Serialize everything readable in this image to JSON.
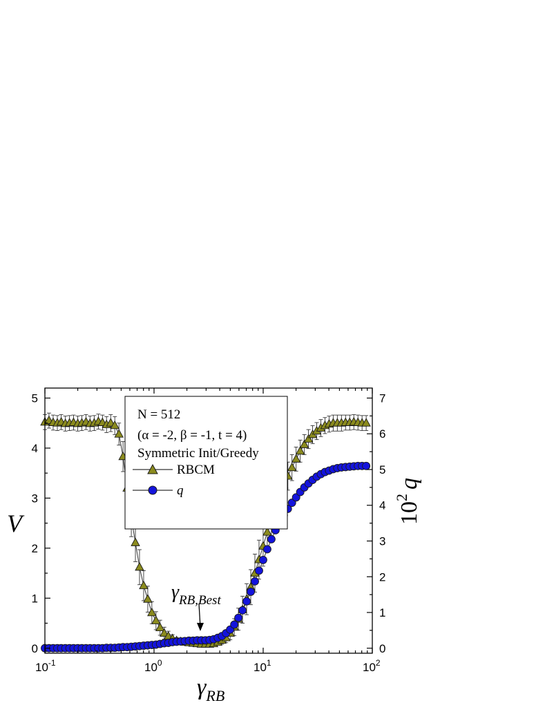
{
  "chart_data": {
    "type": "scatter",
    "xscale": "log",
    "xlim": [
      0.1,
      100
    ],
    "x_ticks": [
      0.1,
      1,
      10,
      100
    ],
    "x_tick_labels": [
      {
        "base": "10",
        "exp": "-1"
      },
      {
        "base": "10",
        "exp": "0"
      },
      {
        "base": "10",
        "exp": "1"
      },
      {
        "base": "10",
        "exp": "2"
      }
    ],
    "ylim_left": [
      -0.1,
      5.2
    ],
    "y_ticks_left": [
      0,
      1,
      2,
      3,
      4,
      5
    ],
    "ylim_right": [
      -0.14,
      7.28
    ],
    "y_ticks_right": [
      0,
      1,
      2,
      3,
      4,
      5,
      6,
      7
    ],
    "xlabel": {
      "main": "γ",
      "sub": "RB"
    },
    "ylabel_left": "V",
    "ylabel_right": {
      "prefix": "10",
      "sup": "2",
      "var": "q"
    },
    "legend": {
      "position": "upper-center",
      "line1": "N = 512",
      "line2": "(α = -2, β = -1, t = 4)",
      "line3": "Symmetric Init/Greedy",
      "entries": [
        "RBCM",
        "q"
      ]
    },
    "annotation": {
      "main": "γ",
      "sub": "RB,Best",
      "x": 2.9,
      "y": 0.08
    },
    "colors": {
      "rbcm_fill": "#8b8b1e",
      "q_fill": "#1414dc",
      "edge": "#1a1a1a",
      "errorbar": "#333333"
    },
    "series": [
      {
        "name": "RBCM",
        "axis": "left",
        "marker": "triangle",
        "x": [
          0.1,
          0.109,
          0.119,
          0.13,
          0.141,
          0.154,
          0.168,
          0.183,
          0.2,
          0.218,
          0.238,
          0.259,
          0.283,
          0.309,
          0.337,
          0.367,
          0.401,
          0.437,
          0.477,
          0.52,
          0.567,
          0.619,
          0.675,
          0.736,
          0.803,
          0.876,
          0.955,
          1.042,
          1.136,
          1.24,
          1.352,
          1.475,
          1.609,
          1.755,
          1.914,
          2.088,
          2.278,
          2.485,
          2.71,
          2.957,
          3.225,
          3.518,
          3.838,
          4.187,
          4.567,
          4.982,
          5.435,
          5.929,
          6.468,
          7.055,
          7.696,
          8.396,
          9.159,
          9.991,
          10.9,
          11.89,
          12.97,
          14.15,
          15.43,
          16.83,
          18.36,
          20.03,
          21.85,
          23.84,
          26.0,
          28.37,
          30.94,
          33.76,
          36.82,
          40.17,
          43.82,
          47.8,
          52.15,
          56.89,
          62.05,
          67.69,
          73.85,
          80.56,
          87.88
        ],
        "y": [
          4.52,
          4.55,
          4.51,
          4.5,
          4.52,
          4.49,
          4.5,
          4.51,
          4.49,
          4.5,
          4.52,
          4.49,
          4.5,
          4.53,
          4.51,
          4.47,
          4.5,
          4.45,
          4.28,
          3.83,
          3.2,
          2.61,
          2.11,
          1.62,
          1.25,
          0.98,
          0.71,
          0.55,
          0.41,
          0.3,
          0.24,
          0.19,
          0.15,
          0.13,
          0.12,
          0.11,
          0.1,
          0.09,
          0.08,
          0.08,
          0.08,
          0.09,
          0.12,
          0.16,
          0.21,
          0.3,
          0.42,
          0.58,
          0.77,
          0.98,
          1.22,
          1.5,
          1.77,
          2.04,
          2.32,
          2.57,
          2.82,
          3.05,
          3.26,
          3.44,
          3.61,
          3.78,
          3.94,
          4.07,
          4.18,
          4.27,
          4.34,
          4.4,
          4.45,
          4.48,
          4.5,
          4.5,
          4.5,
          4.51,
          4.51,
          4.52,
          4.51,
          4.5,
          4.5
        ],
        "err": [
          0.15,
          0.15,
          0.15,
          0.15,
          0.15,
          0.15,
          0.15,
          0.15,
          0.15,
          0.15,
          0.15,
          0.15,
          0.15,
          0.15,
          0.15,
          0.16,
          0.17,
          0.18,
          0.22,
          0.3,
          0.35,
          0.38,
          0.38,
          0.35,
          0.3,
          0.26,
          0.22,
          0.18,
          0.15,
          0.12,
          0.1,
          0.08,
          0.06,
          0.05,
          0.05,
          0.04,
          0.04,
          0.04,
          0.04,
          0.04,
          0.04,
          0.05,
          0.06,
          0.08,
          0.1,
          0.13,
          0.17,
          0.22,
          0.27,
          0.31,
          0.35,
          0.38,
          0.39,
          0.4,
          0.39,
          0.38,
          0.36,
          0.33,
          0.3,
          0.28,
          0.26,
          0.24,
          0.22,
          0.2,
          0.19,
          0.18,
          0.17,
          0.17,
          0.16,
          0.16,
          0.16,
          0.16,
          0.16,
          0.15,
          0.15,
          0.15,
          0.15,
          0.15,
          0.15
        ]
      },
      {
        "name": "q",
        "axis": "right",
        "marker": "circle",
        "x": [
          0.1,
          0.109,
          0.119,
          0.13,
          0.141,
          0.154,
          0.168,
          0.183,
          0.2,
          0.218,
          0.238,
          0.259,
          0.283,
          0.309,
          0.337,
          0.367,
          0.401,
          0.437,
          0.477,
          0.52,
          0.567,
          0.619,
          0.675,
          0.736,
          0.803,
          0.876,
          0.955,
          1.042,
          1.136,
          1.24,
          1.352,
          1.475,
          1.609,
          1.755,
          1.914,
          2.088,
          2.278,
          2.485,
          2.71,
          2.957,
          3.225,
          3.518,
          3.838,
          4.187,
          4.567,
          4.982,
          5.435,
          5.929,
          6.468,
          7.055,
          7.696,
          8.396,
          9.159,
          9.991,
          10.9,
          11.89,
          12.97,
          14.15,
          15.43,
          16.83,
          18.36,
          20.03,
          21.85,
          23.84,
          26.0,
          28.37,
          30.94,
          33.76,
          36.82,
          40.17,
          43.82,
          47.8,
          52.15,
          56.89,
          62.05,
          67.69,
          73.85,
          80.56,
          87.88
        ],
        "y": [
          0.0,
          0.0,
          0.0,
          0.0,
          0.0,
          0.0,
          0.0,
          0.0,
          0.0,
          0.0,
          0.0,
          0.0,
          0.0,
          0.0,
          0.0,
          0.01,
          0.01,
          0.01,
          0.02,
          0.03,
          0.03,
          0.04,
          0.05,
          0.06,
          0.07,
          0.08,
          0.09,
          0.1,
          0.12,
          0.14,
          0.15,
          0.17,
          0.18,
          0.19,
          0.2,
          0.21,
          0.21,
          0.22,
          0.22,
          0.22,
          0.23,
          0.25,
          0.29,
          0.34,
          0.42,
          0.52,
          0.66,
          0.85,
          1.06,
          1.31,
          1.58,
          1.87,
          2.17,
          2.47,
          2.77,
          3.05,
          3.3,
          3.52,
          3.72,
          3.9,
          4.07,
          4.22,
          4.37,
          4.5,
          4.61,
          4.71,
          4.8,
          4.87,
          4.93,
          4.97,
          5.01,
          5.04,
          5.06,
          5.07,
          5.08,
          5.09,
          5.1,
          5.1,
          5.1
        ]
      }
    ]
  }
}
